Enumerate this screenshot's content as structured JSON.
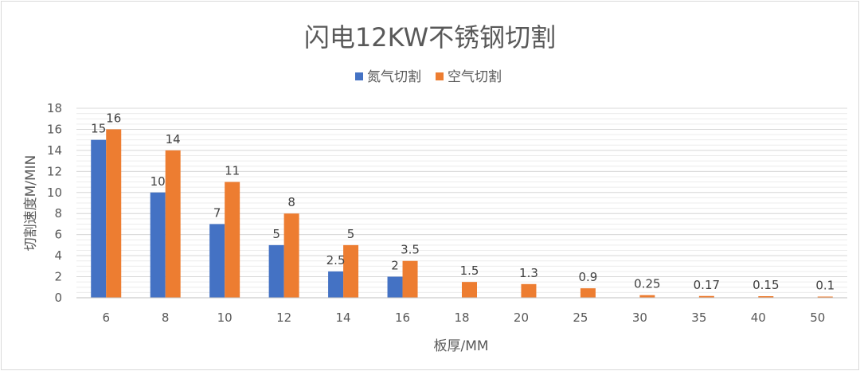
{
  "chart_data": {
    "type": "bar",
    "title": "闪电12KW不锈钢切割",
    "xlabel": "板厚/MM",
    "ylabel": "切割速度M/MIN",
    "ylim": [
      0,
      18
    ],
    "yticks": [
      0,
      2,
      4,
      6,
      8,
      10,
      12,
      14,
      16,
      18
    ],
    "grid": true,
    "legend_position": "top",
    "categories": [
      "6",
      "8",
      "10",
      "12",
      "14",
      "16",
      "18",
      "20",
      "25",
      "30",
      "35",
      "40",
      "50"
    ],
    "series": [
      {
        "name": "氮气切割",
        "color": "#4472c4",
        "values": [
          15,
          10,
          7,
          5,
          2.5,
          2,
          null,
          null,
          null,
          null,
          null,
          null,
          null
        ],
        "labels": [
          "15",
          "10",
          "7",
          "5",
          "2.5",
          "2",
          "",
          "",
          "",
          "",
          "",
          "",
          ""
        ]
      },
      {
        "name": "空气切割",
        "color": "#ed7d31",
        "values": [
          16,
          14,
          11,
          8,
          5,
          3.5,
          1.5,
          1.3,
          0.9,
          0.25,
          0.17,
          0.15,
          0.1
        ],
        "labels": [
          "16",
          "14",
          "11",
          "8",
          "5",
          "3.5",
          "1.5",
          "1.3",
          "0.9",
          "0.25",
          "0.17",
          "0.15",
          "0.1"
        ]
      }
    ]
  }
}
